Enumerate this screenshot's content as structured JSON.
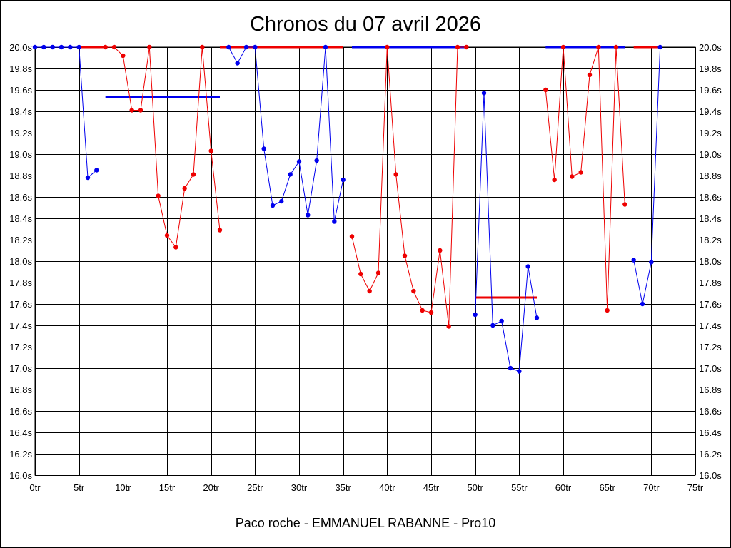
{
  "chart_data": {
    "type": "line",
    "title": "Chronos du 07 avril 2026",
    "footer": "Paco roche - EMMANUEL RABANNE - Pro10",
    "xlabel": "",
    "ylabel": "",
    "xlim": [
      0,
      75
    ],
    "ylim": [
      16.0,
      20.0
    ],
    "grid": true,
    "x_ticks": [
      0,
      5,
      10,
      15,
      20,
      25,
      30,
      35,
      40,
      45,
      50,
      55,
      60,
      65,
      70,
      75
    ],
    "x_tick_suffix": "tr",
    "y_ticks": [
      16.0,
      16.2,
      16.4,
      16.6,
      16.8,
      17.0,
      17.2,
      17.4,
      17.6,
      17.8,
      18.0,
      18.2,
      18.4,
      18.6,
      18.8,
      19.0,
      19.2,
      19.4,
      19.6,
      19.8,
      20.0
    ],
    "y_tick_suffix": "s",
    "colors": {
      "blue": "#0000ee",
      "red": "#ee0000"
    },
    "segments": [
      {
        "color": "blue",
        "x": [
          0,
          1,
          2,
          3,
          4,
          5,
          6,
          7
        ],
        "y": [
          20.0,
          20.0,
          20.0,
          20.0,
          20.0,
          20.0,
          18.78,
          18.85
        ]
      },
      {
        "color": "red",
        "x": [
          8,
          9,
          10,
          11,
          12,
          13,
          14,
          15,
          16,
          17,
          18,
          19,
          20,
          21
        ],
        "y": [
          20.0,
          20.0,
          19.92,
          19.41,
          19.41,
          20.0,
          18.61,
          18.24,
          18.13,
          18.68,
          18.81,
          20.0,
          19.03,
          18.29
        ]
      },
      {
        "color": "blue",
        "x": [
          22,
          23,
          24,
          25,
          26,
          27,
          28,
          29,
          30,
          31,
          32,
          33,
          34,
          35
        ],
        "y": [
          20.0,
          19.85,
          20.0,
          20.0,
          19.05,
          18.52,
          18.56,
          18.81,
          18.93,
          18.43,
          18.94,
          20.0,
          18.37,
          18.76
        ]
      },
      {
        "color": "red",
        "x": [
          36,
          37,
          38,
          39,
          40,
          41,
          42,
          43,
          44,
          45,
          46,
          47,
          48,
          49
        ],
        "y": [
          18.23,
          17.88,
          17.72,
          17.89,
          20.0,
          18.81,
          18.05,
          17.72,
          17.54,
          17.52,
          18.1,
          17.39,
          20.0,
          20.0
        ]
      },
      {
        "color": "blue",
        "x": [
          50,
          51,
          52,
          53,
          54,
          55,
          56,
          57
        ],
        "y": [
          17.5,
          19.57,
          17.4,
          17.44,
          17.0,
          16.97,
          17.95,
          17.47
        ]
      },
      {
        "color": "red",
        "x": [
          58,
          59,
          60,
          61,
          62,
          63,
          64,
          65,
          66,
          67
        ],
        "y": [
          19.6,
          18.76,
          20.0,
          18.79,
          18.83,
          19.74,
          20.0,
          17.54,
          20.0,
          18.53
        ]
      },
      {
        "color": "blue",
        "x": [
          68,
          69,
          70,
          71
        ],
        "y": [
          18.01,
          17.6,
          17.99,
          20.0
        ]
      }
    ],
    "capped_lines": [
      {
        "color": "red",
        "x": [
          5,
          8
        ],
        "y": 20.0
      },
      {
        "color": "red",
        "x": [
          21,
          35
        ],
        "y": 20.0
      },
      {
        "color": "blue",
        "x": [
          36,
          49
        ],
        "y": 20.0
      },
      {
        "color": "blue",
        "x": [
          58,
          67
        ],
        "y": 20.0
      },
      {
        "color": "red",
        "x": [
          68,
          71
        ],
        "y": 20.0
      }
    ],
    "averages": [
      {
        "color": "blue",
        "x": [
          8,
          21
        ],
        "y": 19.53
      },
      {
        "color": "red",
        "x": [
          50,
          57
        ],
        "y": 17.66
      }
    ]
  }
}
